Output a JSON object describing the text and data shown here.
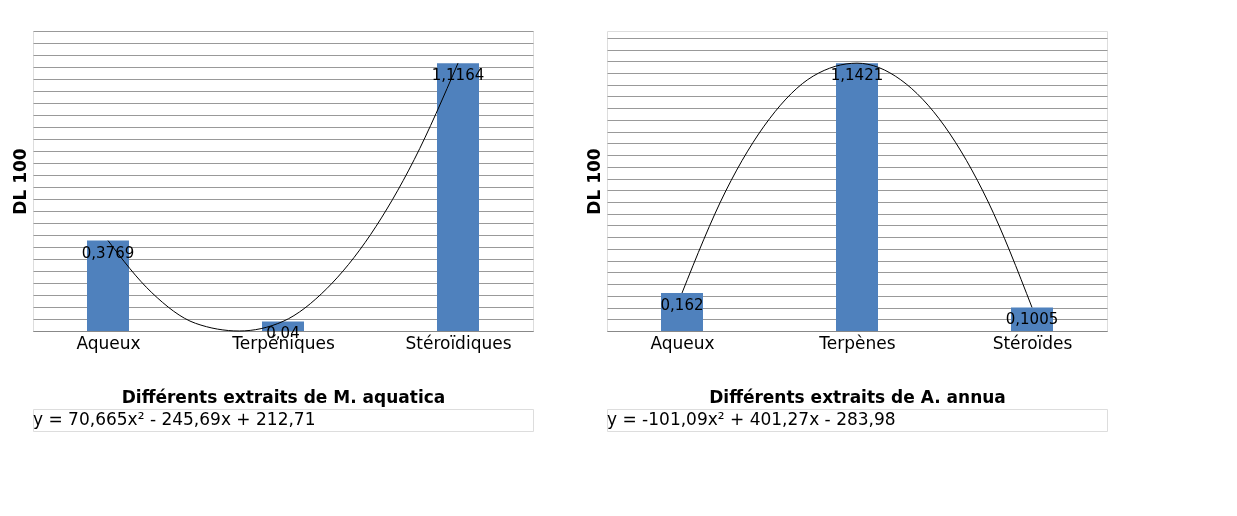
{
  "chart_data": [
    {
      "type": "bar",
      "categories": [
        "Aqueux",
        null,
        null,
        null,
        "Terpéniques",
        null,
        null,
        null,
        "Stéroïdiques"
      ],
      "values": [
        0.3769,
        null,
        null,
        null,
        0.04,
        null,
        null,
        null,
        1.1164
      ],
      "value_labels": [
        "0,3769",
        null,
        null,
        null,
        "0,04",
        null,
        null,
        null,
        "1,1164"
      ],
      "color": "#4f81bd",
      "ylabel": "DL 100",
      "xlabel": "Différents extraits de M. aquatica",
      "grid": "y",
      "tick_labels": "x",
      "series": [
        {
          "type": "line",
          "color": "#000000",
          "values": [
            0.3769,
            0.16,
            0.032,
            0,
            0.04,
            0.1765,
            0.4014,
            0.7146,
            1.1164
          ]
        }
      ],
      "annotations": [
        "y = 70,665x² - 245,69x + 212,71"
      ]
    },
    {
      "type": "bar",
      "categories": [
        "Aqueux",
        null,
        null,
        null,
        "Terpènes",
        null,
        null,
        null,
        "Stéroïdes"
      ],
      "values": [
        0.162,
        null,
        null,
        null,
        1.1421,
        null,
        null,
        null,
        0.1005
      ],
      "value_labels": [
        "0,162",
        null,
        null,
        null,
        "1,1421",
        null,
        null,
        null,
        "0,1005"
      ],
      "color": "#4f81bd",
      "ylabel": "DL 100",
      "xlabel": "Différents extraits de A. annua",
      "grid": "y",
      "tick_labels": "x",
      "series": [
        {
          "type": "line",
          "color": "#000000",
          "values": [
            0.162,
            0.597,
            0.905,
            1.087,
            1.1421,
            1.071,
            0.874,
            0.55,
            0.1005
          ]
        }
      ],
      "annotations": [
        "y = -101,09x² + 401,27x - 283,98"
      ]
    }
  ]
}
